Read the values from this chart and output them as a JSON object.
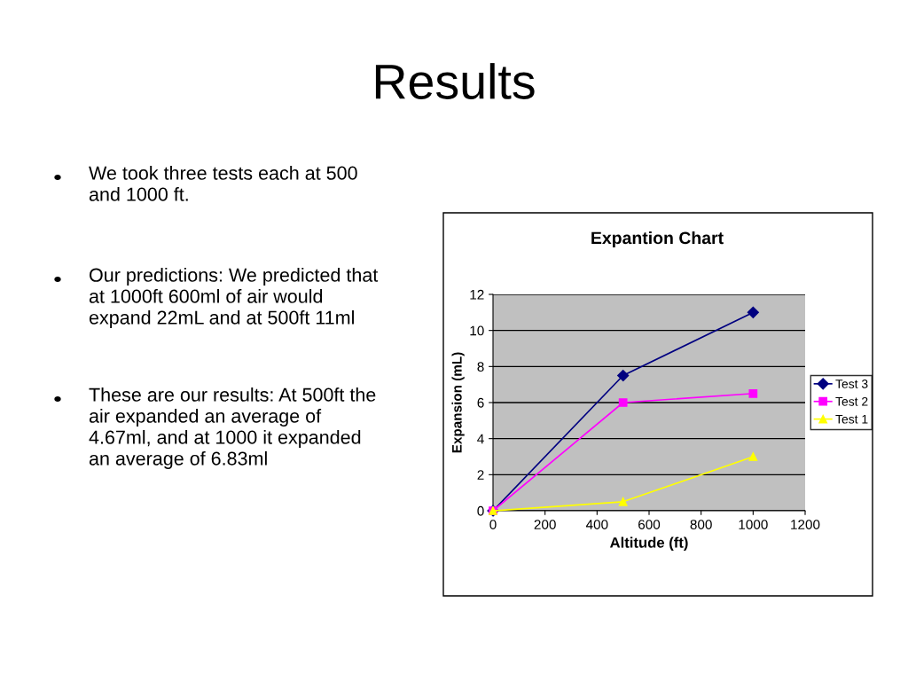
{
  "chart_data": {
    "type": "line",
    "title": "Results",
    "subtitle": "Expantion Chart",
    "xlabel": "Altitude (ft)",
    "ylabel": "Expansion (mL)",
    "x": [
      0,
      500,
      1000
    ],
    "series": [
      {
        "name": "Test 3",
        "color": "#000080",
        "marker": "diamond",
        "values": [
          0,
          7.5,
          11
        ]
      },
      {
        "name": "Test 2",
        "color": "#ff00ff",
        "marker": "square",
        "values": [
          0,
          6,
          6.5
        ]
      },
      {
        "name": "Test 1",
        "color": "#ffff00",
        "marker": "triangle",
        "values": [
          0,
          0.5,
          3
        ]
      }
    ],
    "xlim": [
      0,
      1200
    ],
    "xticks": [
      0,
      200,
      400,
      600,
      800,
      1000,
      1200
    ],
    "ylim": [
      0,
      12
    ],
    "yticks": [
      0,
      2,
      4,
      6,
      8,
      10,
      12
    ],
    "grid": "y",
    "legend": "right",
    "annotations": [
      "We took three tests each at 500\nand 1000 ft.",
      "Our predictions: We predicted that\nat 1000ft 600ml of air would\nexpand 22mL and at 500ft 11ml",
      "These are our results: At 500ft the\nair expanded an average of\n4.67ml, and at 1000 it expanded\nan average of 6.83ml"
    ]
  }
}
